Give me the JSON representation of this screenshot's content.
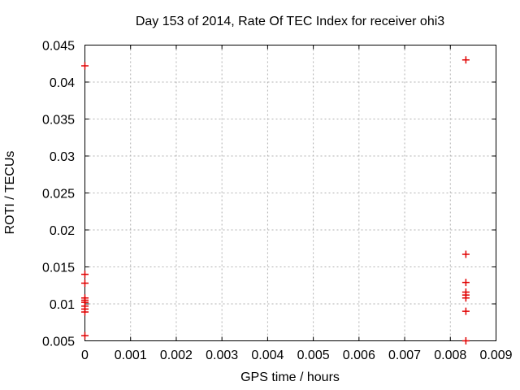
{
  "window": {
    "background": "#ffffff"
  },
  "chart_data": {
    "type": "scatter",
    "title": "Day 153 of 2014, Rate Of TEC Index for receiver ohi3",
    "xlabel": "GPS time / hours",
    "ylabel": "ROTI / TECUs",
    "xlim": [
      0,
      0.009
    ],
    "ylim": [
      0.005,
      0.045
    ],
    "grid": true,
    "legend": "none",
    "colors": {
      "frame": "#000000",
      "grid": "#b0b0b0",
      "marker": "#e00000",
      "text": "#000000"
    },
    "marker": {
      "shape": "plus",
      "size": 9,
      "stroke_width": 1.5
    },
    "xticks": [
      {
        "value": 0,
        "label": "0"
      },
      {
        "value": 0.001,
        "label": "0.001"
      },
      {
        "value": 0.002,
        "label": "0.002"
      },
      {
        "value": 0.003,
        "label": "0.003"
      },
      {
        "value": 0.004,
        "label": "0.004"
      },
      {
        "value": 0.005,
        "label": "0.005"
      },
      {
        "value": 0.006,
        "label": "0.006"
      },
      {
        "value": 0.007,
        "label": "0.007"
      },
      {
        "value": 0.008,
        "label": "0.008"
      },
      {
        "value": 0.009,
        "label": "0.009"
      }
    ],
    "yticks": [
      {
        "value": 0.005,
        "label": "0.005"
      },
      {
        "value": 0.01,
        "label": "0.01"
      },
      {
        "value": 0.015,
        "label": "0.015"
      },
      {
        "value": 0.02,
        "label": "0.02"
      },
      {
        "value": 0.025,
        "label": "0.025"
      },
      {
        "value": 0.03,
        "label": "0.03"
      },
      {
        "value": 0.035,
        "label": "0.035"
      },
      {
        "value": 0.04,
        "label": "0.04"
      },
      {
        "value": 0.045,
        "label": "0.045"
      }
    ],
    "series": [
      {
        "name": "ROTI",
        "points": [
          [
            0,
            0.0422
          ],
          [
            0,
            0.014
          ],
          [
            0,
            0.0128
          ],
          [
            0,
            0.0108
          ],
          [
            0,
            0.0105
          ],
          [
            0,
            0.0102
          ],
          [
            0,
            0.0097
          ],
          [
            0,
            0.0093
          ],
          [
            0,
            0.0089
          ],
          [
            0,
            0.0057
          ],
          [
            0.00834,
            0.043
          ],
          [
            0.00834,
            0.0167
          ],
          [
            0.00834,
            0.0129
          ],
          [
            0.00834,
            0.0116
          ],
          [
            0.00834,
            0.0112
          ],
          [
            0.00834,
            0.0108
          ],
          [
            0.00834,
            0.009
          ],
          [
            0.00834,
            0.005
          ]
        ]
      }
    ]
  }
}
